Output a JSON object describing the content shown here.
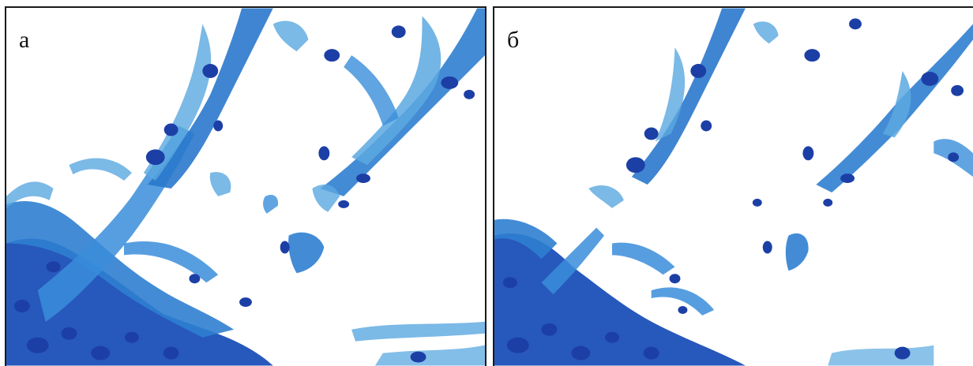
{
  "panels": [
    {
      "label": "а"
    },
    {
      "label": "б"
    }
  ],
  "colors": {
    "background": "#ffffff",
    "stain_light": "#5aa8e0",
    "stain_mid": "#2f7fd0",
    "stain_dark": "#1b4fb8",
    "nucleus": "#1c3fa6",
    "border": "#1a1a1a"
  }
}
